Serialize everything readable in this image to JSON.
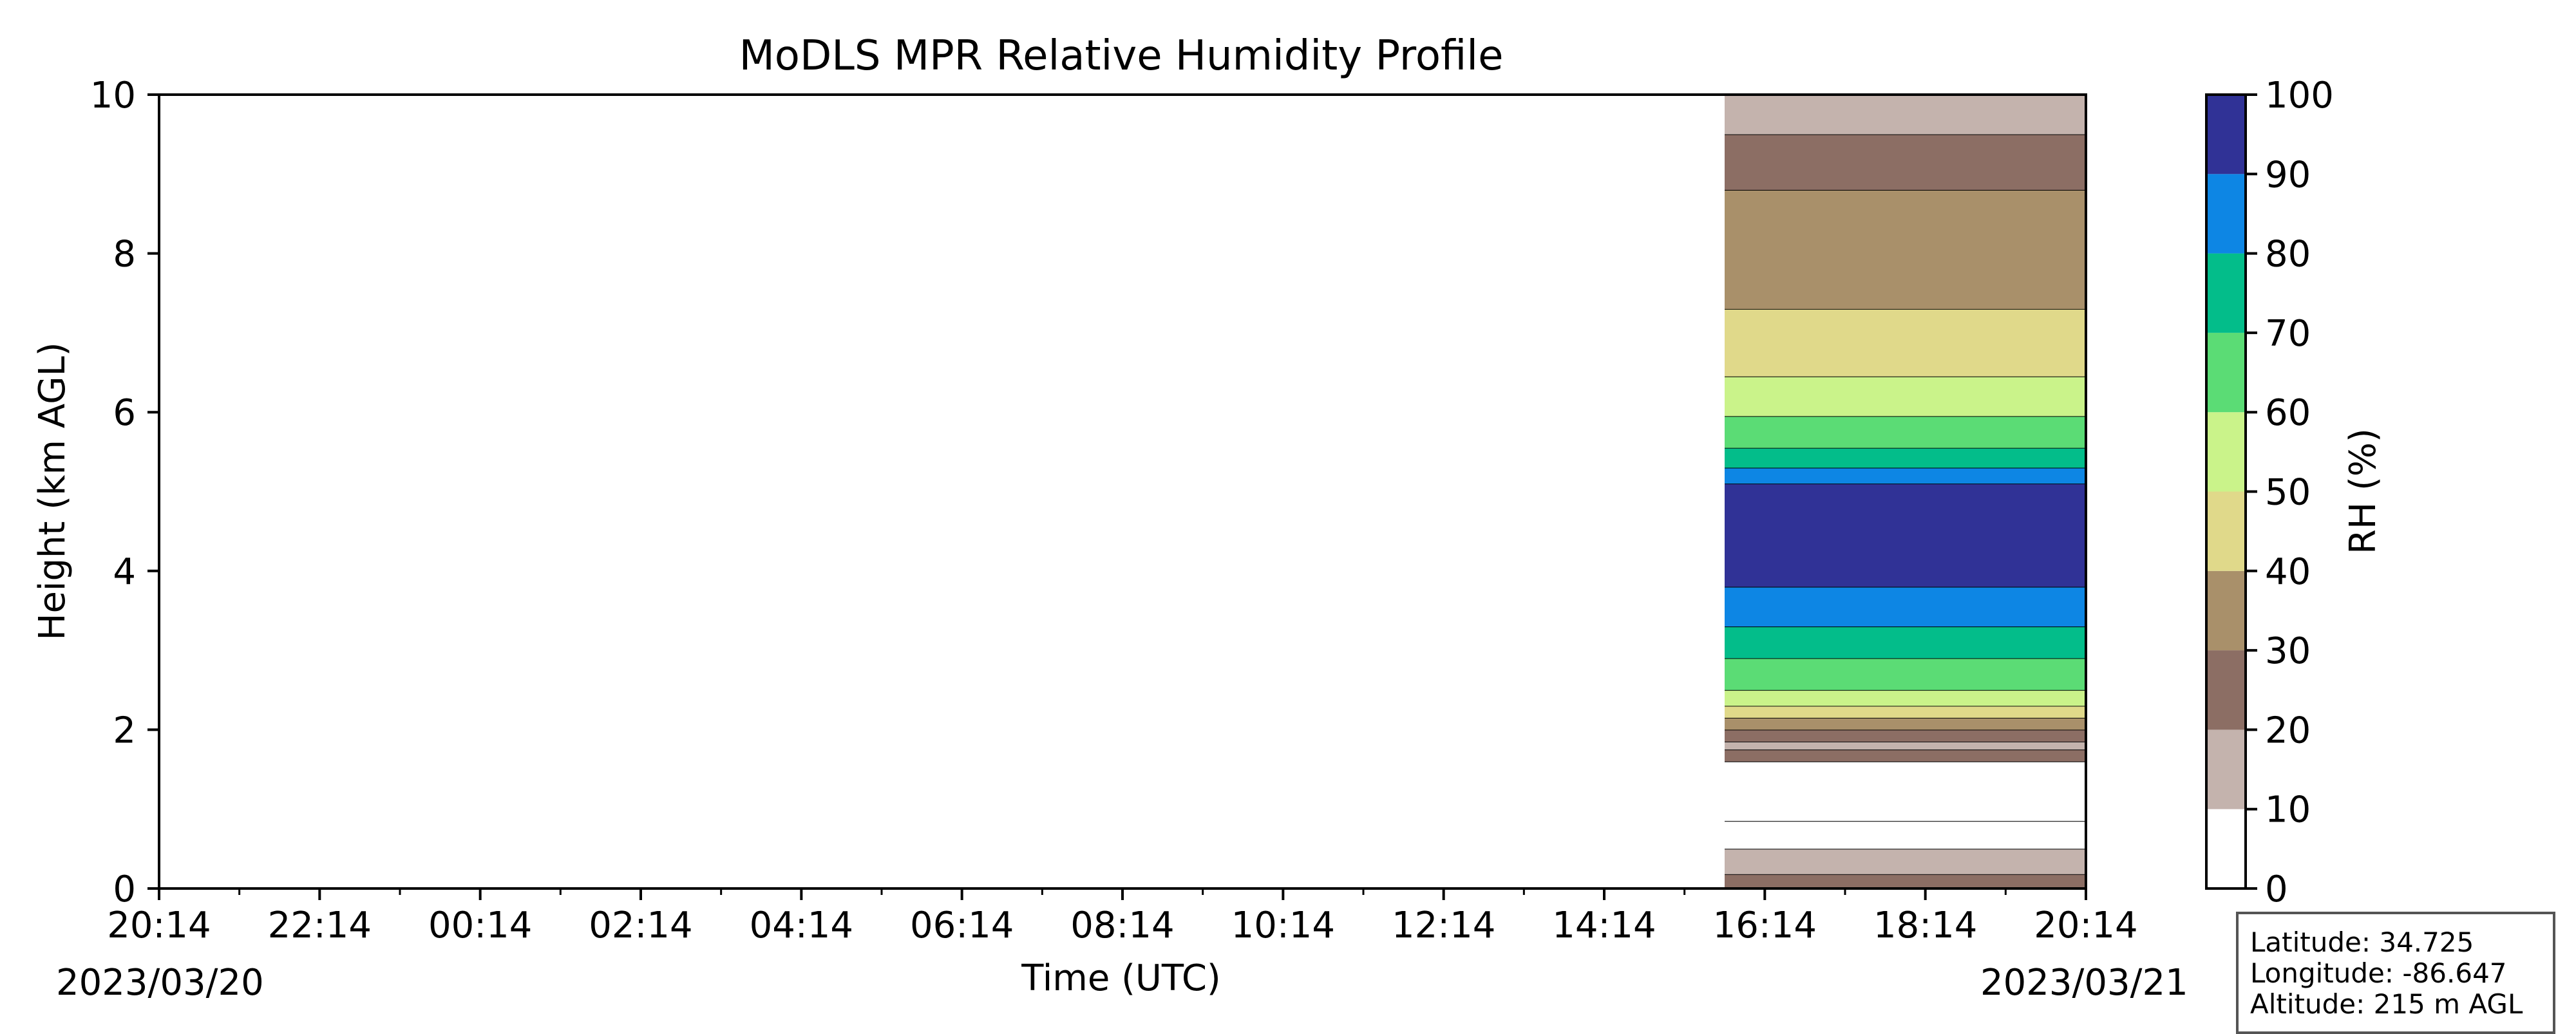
{
  "chart_data": {
    "type": "heatmap",
    "title": "MoDLS MPR Relative Humidity Profile",
    "xlabel": "Time (UTC)",
    "ylabel": "Height (km AGL)",
    "x_ticks": [
      "20:14",
      "22:14",
      "00:14",
      "02:14",
      "04:14",
      "06:14",
      "08:14",
      "10:14",
      "12:14",
      "14:14",
      "16:14",
      "18:14",
      "20:14"
    ],
    "x_hours_span": [
      0,
      24
    ],
    "data_start_hours": 19.5,
    "start_date": "2023/03/20",
    "end_date": "2023/03/21",
    "ylim": [
      0,
      10
    ],
    "y_ticks": [
      0,
      2,
      4,
      6,
      8,
      10
    ],
    "colorbar": {
      "label": "RH (%)",
      "levels": [
        0,
        10,
        20,
        30,
        40,
        50,
        60,
        70,
        80,
        90,
        100
      ],
      "colors": [
        "#ffffff",
        "#c4b3ad",
        "#8c6e64",
        "#a9906a",
        "#e0d98a",
        "#caf38a",
        "#5bdc75",
        "#03bd8a",
        "#0d86e4",
        "#303296"
      ]
    },
    "profile_bands_km": [
      {
        "from": 0.0,
        "to": 0.18,
        "rh_class": 20
      },
      {
        "from": 0.18,
        "to": 0.5,
        "rh_class": 10
      },
      {
        "from": 0.5,
        "to": 0.85,
        "rh_class": 0
      },
      {
        "from": 0.85,
        "to": 1.6,
        "rh_class": 0
      },
      {
        "from": 1.6,
        "to": 1.75,
        "rh_class": 20
      },
      {
        "from": 1.75,
        "to": 1.85,
        "rh_class": 10
      },
      {
        "from": 1.85,
        "to": 2.0,
        "rh_class": 20
      },
      {
        "from": 2.0,
        "to": 2.15,
        "rh_class": 30
      },
      {
        "from": 2.15,
        "to": 2.3,
        "rh_class": 40
      },
      {
        "from": 2.3,
        "to": 2.5,
        "rh_class": 50
      },
      {
        "from": 2.5,
        "to": 2.9,
        "rh_class": 60
      },
      {
        "from": 2.9,
        "to": 3.3,
        "rh_class": 70
      },
      {
        "from": 3.3,
        "to": 3.8,
        "rh_class": 80
      },
      {
        "from": 3.8,
        "to": 5.1,
        "rh_class": 90
      },
      {
        "from": 5.1,
        "to": 5.3,
        "rh_class": 80
      },
      {
        "from": 5.3,
        "to": 5.55,
        "rh_class": 70
      },
      {
        "from": 5.55,
        "to": 5.95,
        "rh_class": 60
      },
      {
        "from": 5.95,
        "to": 6.45,
        "rh_class": 50
      },
      {
        "from": 6.45,
        "to": 7.3,
        "rh_class": 40
      },
      {
        "from": 7.3,
        "to": 8.8,
        "rh_class": 30
      },
      {
        "from": 8.8,
        "to": 9.5,
        "rh_class": 20
      },
      {
        "from": 9.5,
        "to": 10.0,
        "rh_class": 10
      }
    ]
  },
  "info": {
    "latitude": "Latitude: 34.725",
    "longitude": "Longitude: -86.647",
    "altitude": "Altitude: 215 m AGL"
  }
}
